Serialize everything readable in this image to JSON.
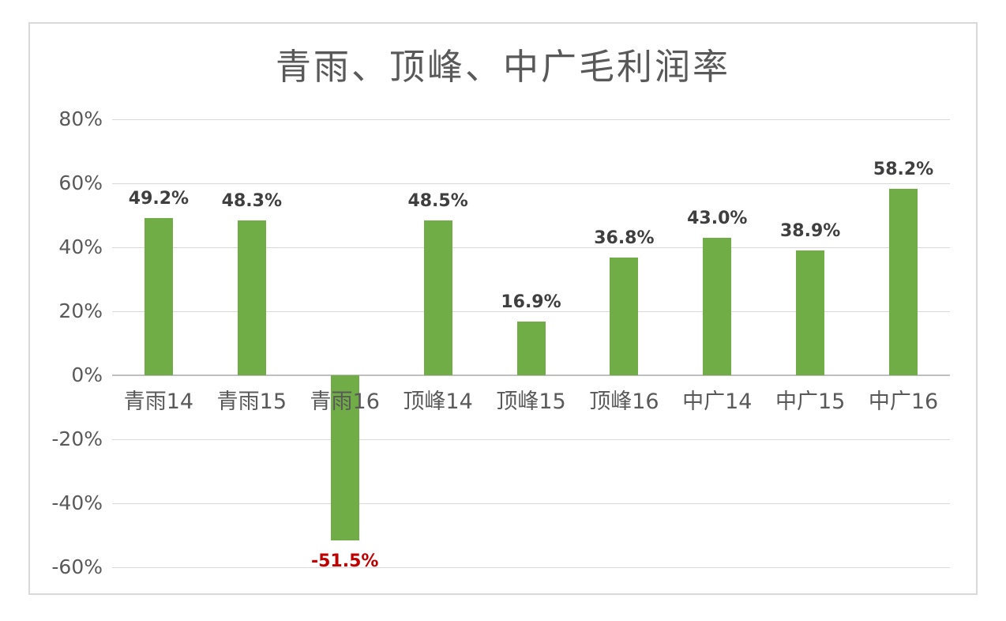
{
  "chart_data": {
    "type": "bar",
    "title": "青雨、顶峰、中广毛利润率",
    "categories": [
      "青雨14",
      "青雨15",
      "青雨16",
      "顶峰14",
      "顶峰15",
      "顶峰16",
      "中广14",
      "中广15",
      "中广16"
    ],
    "values": [
      49.2,
      48.3,
      -51.5,
      48.5,
      16.9,
      36.8,
      43.0,
      38.9,
      58.2
    ],
    "data_labels": [
      "49.2%",
      "48.3%",
      "-51.5%",
      "48.5%",
      "16.9%",
      "36.8%",
      "43.0%",
      "38.9%",
      "58.2%"
    ],
    "y_ticks": [
      {
        "label": "80%",
        "value": 80
      },
      {
        "label": "60%",
        "value": 60
      },
      {
        "label": "40%",
        "value": 40
      },
      {
        "label": "20%",
        "value": 20
      },
      {
        "label": "0%",
        "value": 0
      },
      {
        "label": "-20%",
        "value": -20
      },
      {
        "label": "-40%",
        "value": -40
      },
      {
        "label": "-60%",
        "value": -60
      }
    ],
    "ylim": [
      -60,
      80
    ],
    "grid": true,
    "legend": "none",
    "xlabel": "",
    "ylabel": "",
    "colors": {
      "bar": "#70ad47",
      "positive_label": "#3f3f3f",
      "negative_label": "#c00000",
      "axis_text": "#595959",
      "gridline": "#d9d9d9",
      "zero_line": "#bfbfbf",
      "title": "#595959",
      "frame_border": "#d9d9d9"
    }
  }
}
